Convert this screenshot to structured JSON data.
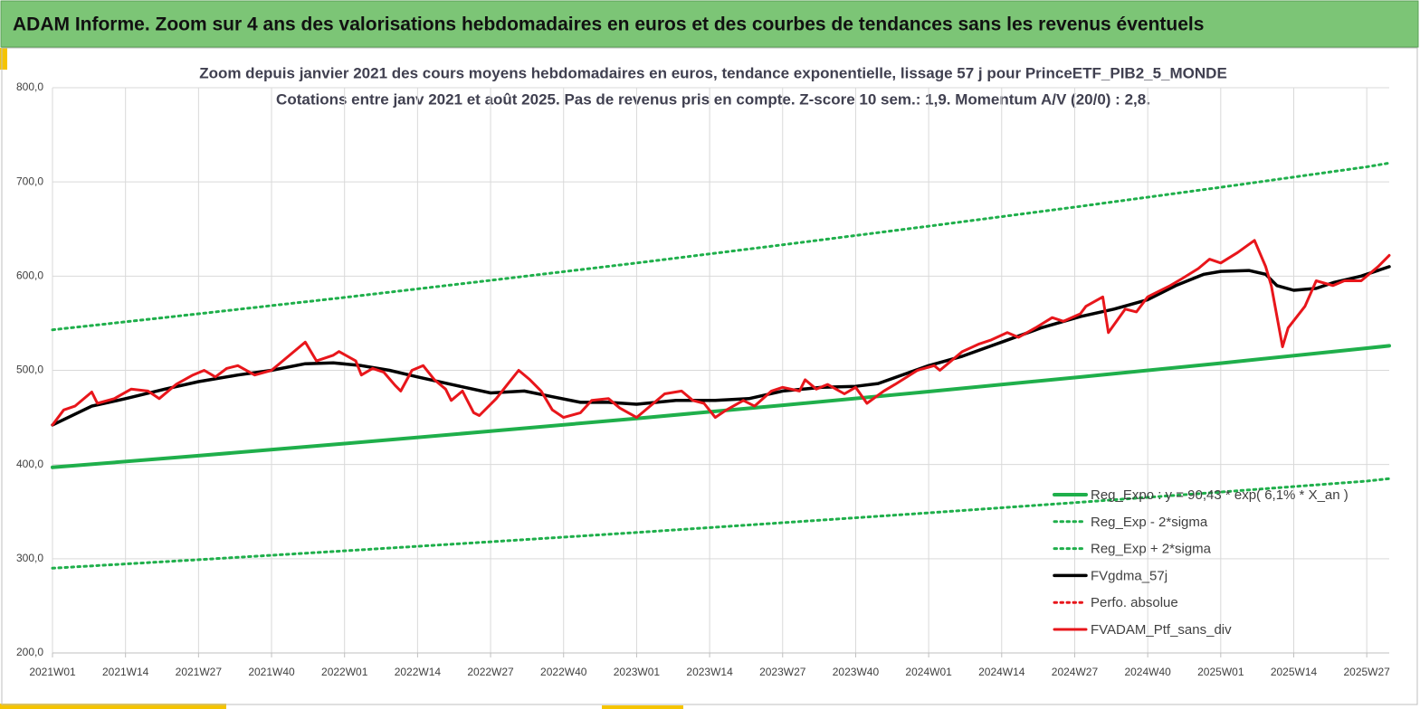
{
  "header": {
    "title": "ADAM Informe. Zoom sur 4 ans des valorisations hebdomadaires en euros et des courbes de tendances sans les revenus éventuels"
  },
  "chart_data": {
    "type": "line",
    "title": "Zoom depuis janvier 2021 des cours moyens hebdomadaires  en euros, tendance exponentielle, lissage 57 j pour PrinceETF_PIB2_5_MONDE",
    "subtitle": "Cotations entre janv 2021 et août 2025. Pas de revenus pris en compte. Z-score 10 sem.: 1,9. Momentum A/V (20/0) : 2,8.",
    "xlim": [
      0,
      238
    ],
    "xticks": [
      {
        "value": 0,
        "label": "2021W01"
      },
      {
        "value": 13,
        "label": "2021W14"
      },
      {
        "value": 26,
        "label": "2021W27"
      },
      {
        "value": 39,
        "label": "2021W40"
      },
      {
        "value": 52,
        "label": "2022W01"
      },
      {
        "value": 65,
        "label": "2022W14"
      },
      {
        "value": 78,
        "label": "2022W27"
      },
      {
        "value": 91,
        "label": "2022W40"
      },
      {
        "value": 104,
        "label": "2023W01"
      },
      {
        "value": 117,
        "label": "2023W14"
      },
      {
        "value": 130,
        "label": "2023W27"
      },
      {
        "value": 143,
        "label": "2023W40"
      },
      {
        "value": 156,
        "label": "2024W01"
      },
      {
        "value": 169,
        "label": "2024W14"
      },
      {
        "value": 182,
        "label": "2024W27"
      },
      {
        "value": 195,
        "label": "2024W40"
      },
      {
        "value": 208,
        "label": "2025W01"
      },
      {
        "value": 221,
        "label": "2025W14"
      },
      {
        "value": 234,
        "label": "2025W27"
      }
    ],
    "ylim": [
      200,
      800
    ],
    "yticks": [
      {
        "value": 200,
        "label": "200,0"
      },
      {
        "value": 300,
        "label": "300,0"
      },
      {
        "value": 400,
        "label": "400,0"
      },
      {
        "value": 500,
        "label": "500,0"
      },
      {
        "value": 600,
        "label": "600,0"
      },
      {
        "value": 700,
        "label": "700,0"
      },
      {
        "value": 800,
        "label": "800,0"
      }
    ],
    "grid": true,
    "legend": "bottom-right",
    "series": [
      {
        "name": "Reg_Expo : y = 90,43 * exp( 6,1% *  X_an )",
        "color": "#1faf4b",
        "dash": "solid",
        "width": 4,
        "x": [
          0,
          26,
          52,
          78,
          104,
          130,
          156,
          182,
          208,
          234,
          238
        ],
        "values": [
          397,
          409.4,
          422.2,
          435.4,
          448.9,
          462.9,
          477.4,
          492.3,
          507.6,
          523.5,
          526
        ]
      },
      {
        "name": "Reg_Exp - 2*sigma",
        "color": "#1faf4b",
        "dash": "dotted",
        "width": 3,
        "x": [
          0,
          26,
          52,
          78,
          104,
          130,
          156,
          182,
          208,
          234,
          238
        ],
        "values": [
          290,
          299,
          308.4,
          318,
          327.9,
          338.2,
          348.7,
          359.6,
          370.8,
          382.4,
          385
        ]
      },
      {
        "name": "Reg_Exp + 2*sigma",
        "color": "#1faf4b",
        "dash": "dotted",
        "width": 3,
        "x": [
          0,
          26,
          52,
          78,
          104,
          130,
          156,
          182,
          208,
          234,
          238
        ],
        "values": [
          543,
          560,
          577.4,
          595.5,
          614,
          633.2,
          653,
          673.3,
          694.3,
          716,
          720
        ]
      },
      {
        "name": "FVgdma_57j",
        "color": "#000000",
        "dash": "solid",
        "width": 3.5,
        "x": [
          0,
          7,
          13,
          20,
          26,
          33,
          39,
          45,
          50,
          55,
          60,
          65,
          71,
          78,
          84,
          89,
          94,
          99,
          104,
          111,
          118,
          124,
          130,
          137,
          143,
          147,
          156,
          162,
          169,
          176,
          183,
          189,
          195,
          200,
          205,
          208,
          213,
          216,
          218,
          221,
          225,
          228,
          233,
          238
        ],
        "values": [
          442,
          462,
          470,
          480,
          488,
          495,
          500,
          507,
          508,
          505,
          500,
          493,
          485,
          476,
          478,
          472,
          466,
          466,
          464,
          468,
          468,
          470,
          478,
          482,
          483,
          486,
          505,
          515,
          530,
          545,
          557,
          565,
          575,
          590,
          602,
          605,
          606,
          602,
          590,
          585,
          587,
          593,
          600,
          610
        ]
      },
      {
        "name": "Perfo. absolue",
        "color": "#e8161b",
        "dash": "dotted",
        "width": 3,
        "x": [],
        "values": []
      },
      {
        "name": "FVADAM_Ptf_sans_div",
        "color": "#e8161b",
        "dash": "solid",
        "width": 3,
        "x": [
          0,
          2,
          4,
          7,
          8,
          11,
          14,
          17,
          19,
          22,
          25,
          27,
          29,
          31,
          33,
          36,
          39,
          41,
          45,
          47,
          50,
          51,
          54,
          55,
          57,
          59,
          61,
          62,
          64,
          66,
          68,
          70,
          71,
          73,
          75,
          76,
          79,
          81,
          83,
          85,
          87,
          89,
          91,
          94,
          96,
          99,
          101,
          104,
          107,
          109,
          112,
          114,
          116,
          118,
          120,
          123,
          125,
          128,
          130,
          133,
          134,
          136,
          138,
          141,
          143,
          145,
          148,
          150,
          154,
          157,
          158,
          162,
          165,
          167,
          170,
          172,
          175,
          178,
          180,
          183,
          184,
          187,
          188,
          191,
          193,
          195,
          199,
          201,
          204,
          206,
          208,
          211,
          214,
          216,
          217,
          219,
          220,
          223,
          225,
          228,
          230,
          233,
          236,
          238
        ],
        "values": [
          442,
          458,
          462,
          477,
          465,
          470,
          480,
          478,
          470,
          485,
          495,
          500,
          493,
          502,
          505,
          495,
          500,
          510,
          530,
          510,
          516,
          520,
          510,
          495,
          502,
          498,
          484,
          478,
          500,
          505,
          490,
          480,
          468,
          478,
          455,
          452,
          470,
          485,
          500,
          490,
          478,
          458,
          450,
          455,
          468,
          470,
          460,
          450,
          465,
          475,
          478,
          468,
          465,
          450,
          458,
          468,
          462,
          478,
          482,
          478,
          490,
          480,
          485,
          475,
          482,
          465,
          478,
          485,
          500,
          505,
          500,
          520,
          528,
          532,
          540,
          535,
          545,
          556,
          552,
          560,
          568,
          578,
          540,
          565,
          562,
          578,
          590,
          597,
          608,
          618,
          614,
          625,
          638,
          610,
          590,
          525,
          545,
          568,
          595,
          590,
          595,
          595,
          610,
          622
        ]
      }
    ]
  }
}
